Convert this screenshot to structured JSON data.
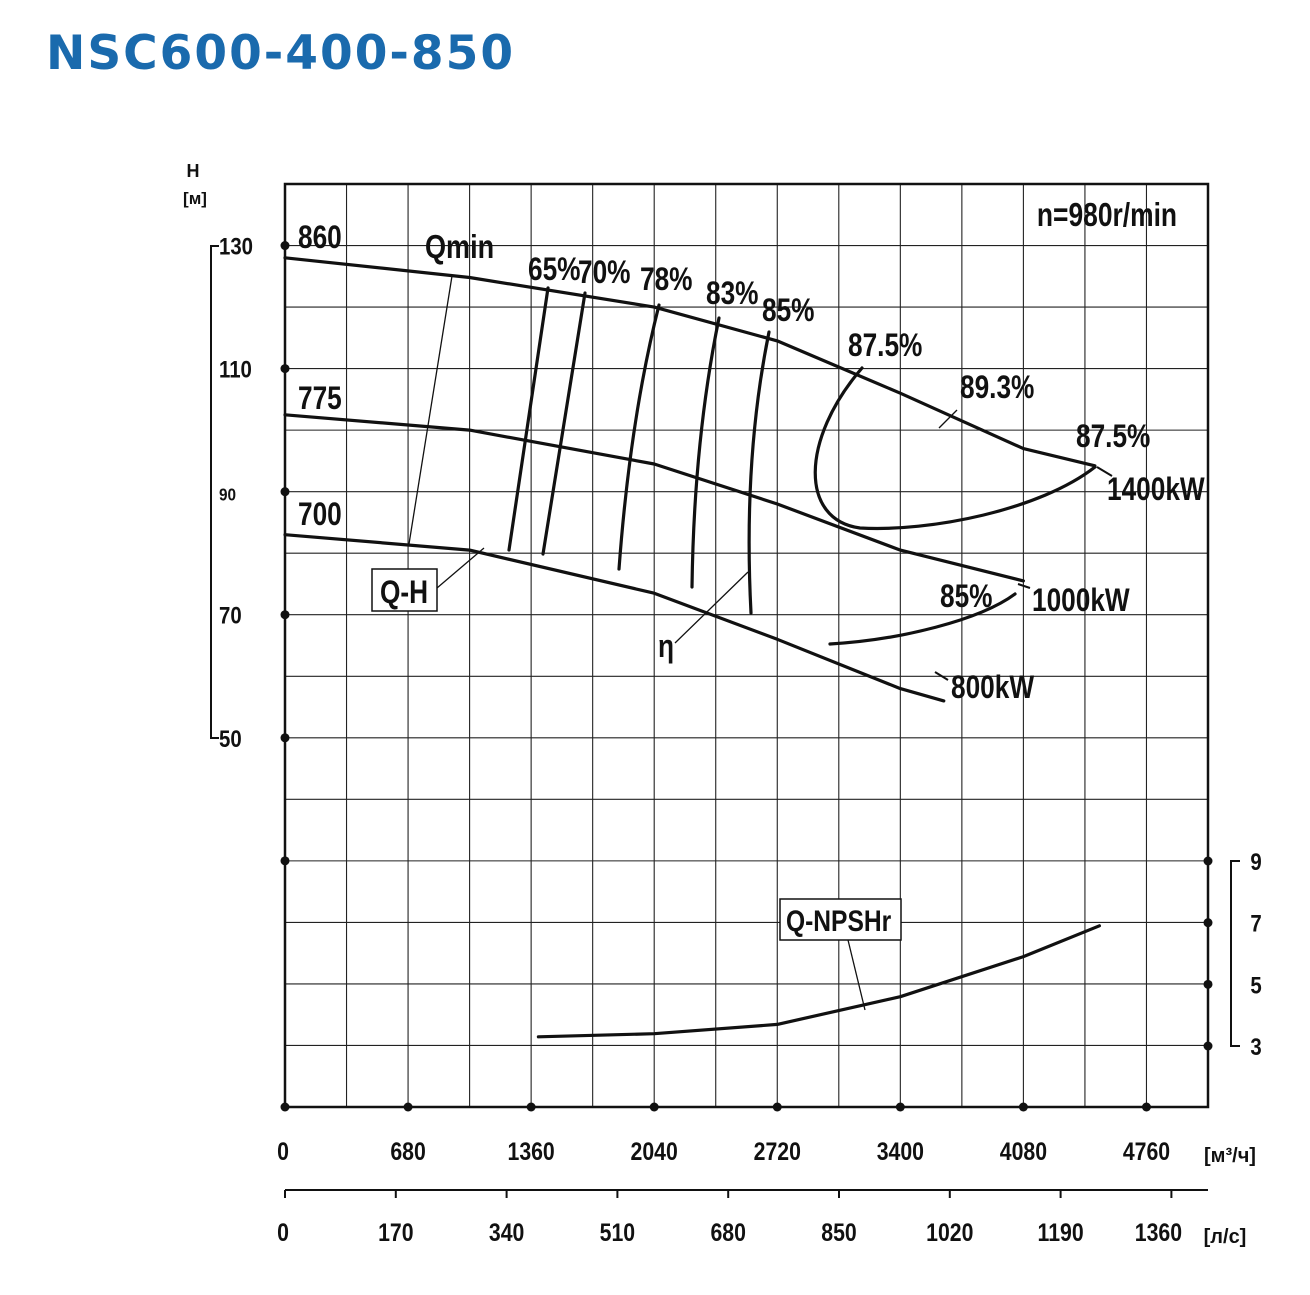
{
  "title": "NSC600-400-850",
  "colors": {
    "title": "#1a6aad",
    "ink": "#111111",
    "grid": "#222222"
  },
  "chart_data": {
    "type": "line",
    "title": "NSC600-400-850",
    "speed_label": "n=980r/min",
    "y_axis": {
      "symbol": "H",
      "unit": "[м]",
      "ticks": [
        130,
        110,
        90,
        70,
        50
      ],
      "ylim": [
        -10,
        140
      ]
    },
    "x_axis_m3h": {
      "unit": "[м³/ч]",
      "ticks": [
        0,
        680,
        1360,
        2040,
        2720,
        3400,
        4080,
        4760
      ],
      "xlim": [
        0,
        5100
      ]
    },
    "x_axis_ls": {
      "unit": "[л/с]",
      "ticks": [
        0,
        170,
        340,
        510,
        680,
        850,
        1020,
        1190,
        1360
      ]
    },
    "npsh_axis": {
      "ticks": [
        9,
        7,
        5,
        3
      ]
    },
    "series": [
      {
        "name": "860",
        "kind": "Q-H",
        "x": [
          0,
          1020,
          2040,
          2720,
          3400,
          4080,
          4475
        ],
        "y": [
          128,
          124.8,
          120,
          114.5,
          106,
          97,
          94.2
        ]
      },
      {
        "name": "775",
        "kind": "Q-H",
        "x": [
          0,
          1020,
          2040,
          2720,
          3400,
          4080,
          4080
        ],
        "y": [
          102.5,
          100,
          94.5,
          88,
          80.5,
          75.5,
          75.5
        ]
      },
      {
        "name": "700",
        "kind": "Q-H",
        "x": [
          0,
          1020,
          2040,
          2720,
          3400,
          3640
        ],
        "y": [
          83,
          80.5,
          73.5,
          66,
          58,
          56
        ]
      }
    ],
    "efficiency_labels": [
      "65%",
      "70%",
      "78%",
      "83%",
      "85%",
      "87.5%",
      "89.3%",
      "87.5%",
      "85%"
    ],
    "power_labels": [
      "1400kW",
      "1000kW",
      "800kW"
    ],
    "annotations": {
      "qmin": "Qmin",
      "qh": "Q-H",
      "eta": "η",
      "npsh": "Q-NPSHr"
    },
    "npsh": {
      "name": "Q-NPSHr",
      "x": [
        1400,
        2040,
        2720,
        3400,
        4080,
        4500
      ],
      "y": [
        3.3,
        3.4,
        3.7,
        4.6,
        5.9,
        6.9
      ]
    }
  }
}
